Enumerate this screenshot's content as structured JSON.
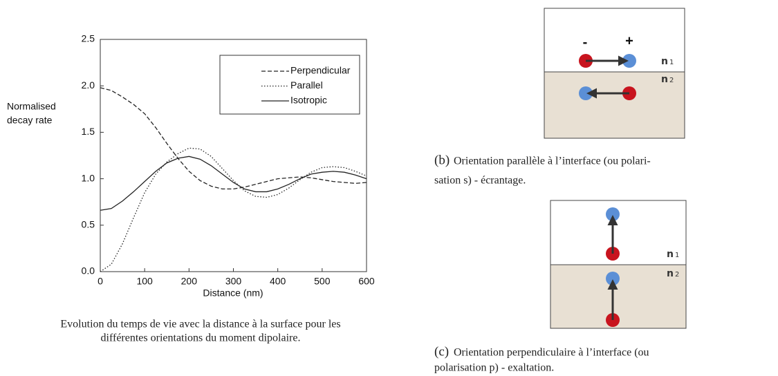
{
  "chart_data": {
    "type": "line",
    "ylabel": [
      "Normalised",
      "decay rate"
    ],
    "xlabel": "Distance (nm)",
    "x": [
      0,
      25,
      50,
      75,
      100,
      125,
      150,
      175,
      200,
      225,
      250,
      275,
      300,
      325,
      350,
      375,
      400,
      425,
      450,
      475,
      500,
      525,
      550,
      575,
      600
    ],
    "series": [
      {
        "name": "Perpendicular",
        "color": "#222222",
        "style": "dashed",
        "values": [
          1.98,
          1.95,
          1.88,
          1.8,
          1.7,
          1.55,
          1.38,
          1.22,
          1.08,
          0.98,
          0.92,
          0.89,
          0.89,
          0.91,
          0.94,
          0.97,
          1.0,
          1.01,
          1.02,
          1.01,
          0.99,
          0.97,
          0.96,
          0.95,
          0.96
        ]
      },
      {
        "name": "Parallel",
        "color": "#222222",
        "style": "dotted",
        "values": [
          0.0,
          0.08,
          0.3,
          0.58,
          0.85,
          1.05,
          1.18,
          1.27,
          1.33,
          1.32,
          1.24,
          1.11,
          0.98,
          0.87,
          0.81,
          0.8,
          0.83,
          0.9,
          0.99,
          1.07,
          1.12,
          1.13,
          1.12,
          1.08,
          1.03
        ]
      },
      {
        "name": "Isotropic",
        "color": "#222222",
        "style": "solid",
        "values": [
          0.66,
          0.68,
          0.76,
          0.86,
          0.97,
          1.08,
          1.17,
          1.22,
          1.24,
          1.21,
          1.14,
          1.05,
          0.96,
          0.89,
          0.86,
          0.86,
          0.89,
          0.94,
          1.0,
          1.05,
          1.07,
          1.08,
          1.07,
          1.04,
          1.0
        ]
      }
    ],
    "xlim": [
      0,
      600
    ],
    "ylim": [
      0,
      2.5
    ],
    "xticks": [
      0,
      100,
      200,
      300,
      400,
      500,
      600
    ],
    "yticks": [
      {
        "value": 0,
        "label": "0.0"
      },
      0.5,
      {
        "value": 1,
        "label": "1.0"
      },
      1.5,
      {
        "value": 2,
        "label": "2.0"
      },
      2.5
    ],
    "legend": "upper right"
  },
  "chart_caption": [
    "Evolution du temps de vie avec la distance à la surface pour les",
    "différentes orientations du moment dipolaire."
  ],
  "figures": [
    {
      "charges": [
        "-",
        "+"
      ],
      "media": [
        {
          "base": "n",
          "index": "1"
        },
        {
          "base": "n",
          "index": "2"
        }
      ],
      "label": "(b)",
      "lines": [
        "Orientation parallèle à l’interface (ou polari-",
        "sation s) - écrantage."
      ]
    },
    {
      "media": [
        {
          "base": "n",
          "index": "1"
        },
        {
          "base": "n",
          "index": "2"
        }
      ],
      "label": "(c)",
      "lines": [
        "Orientation perpendiculaire à l’interface (ou",
        "polarisation p) - exaltation."
      ]
    }
  ]
}
